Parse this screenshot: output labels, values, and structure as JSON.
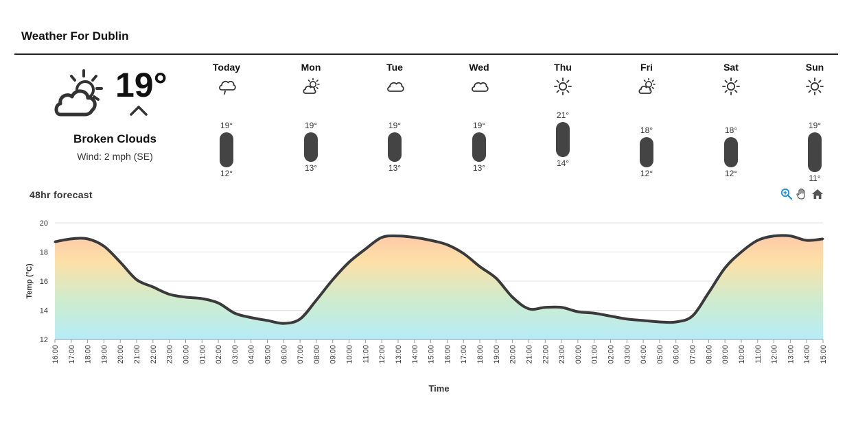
{
  "header": {
    "title": "Weather For Dublin"
  },
  "current": {
    "icon": "broken-clouds-day-icon",
    "temp": "19°",
    "trend_icon": "chevron-up-icon",
    "condition": "Broken Clouds",
    "wind": "Wind: 2 mph (SE)"
  },
  "days": [
    {
      "label": "Today",
      "icon": "cloud-rain-icon",
      "hi": "19°",
      "lo": "12°",
      "hi_v": 19,
      "lo_v": 12
    },
    {
      "label": "Mon",
      "icon": "partly-cloudy-icon",
      "hi": "19°",
      "lo": "13°",
      "hi_v": 19,
      "lo_v": 13
    },
    {
      "label": "Tue",
      "icon": "cloud-icon",
      "hi": "19°",
      "lo": "13°",
      "hi_v": 19,
      "lo_v": 13
    },
    {
      "label": "Wed",
      "icon": "cloud-icon",
      "hi": "19°",
      "lo": "13°",
      "hi_v": 19,
      "lo_v": 13
    },
    {
      "label": "Thu",
      "icon": "sun-icon",
      "hi": "21°",
      "lo": "14°",
      "hi_v": 21,
      "lo_v": 14
    },
    {
      "label": "Fri",
      "icon": "partly-cloudy-icon",
      "hi": "18°",
      "lo": "12°",
      "hi_v": 18,
      "lo_v": 12
    },
    {
      "label": "Sat",
      "icon": "sun-icon",
      "hi": "18°",
      "lo": "12°",
      "hi_v": 18,
      "lo_v": 12
    },
    {
      "label": "Sun",
      "icon": "sun-icon",
      "hi": "19°",
      "lo": "11°",
      "hi_v": 19,
      "lo_v": 11
    }
  ],
  "forecast": {
    "title": "48hr forecast",
    "toolbar": [
      {
        "name": "zoom-in-icon",
        "color": "#1a8fdc"
      },
      {
        "name": "pan-hand-icon",
        "color": "#555555"
      },
      {
        "name": "home-icon",
        "color": "#555555"
      }
    ]
  },
  "chart_data": {
    "type": "area",
    "xlabel": "Time",
    "ylabel": "Temp (°C)",
    "ylim": [
      12,
      20
    ],
    "yticks": [
      12,
      14,
      16,
      18,
      20
    ],
    "grid": true,
    "gradient": [
      "#fdbfa9",
      "#fde0a7",
      "#cdeccf",
      "#b6ecf8"
    ],
    "line_color": "#3a3a3a",
    "x": [
      "16:00",
      "17:00",
      "18:00",
      "19:00",
      "20:00",
      "21:00",
      "22:00",
      "23:00",
      "00:00",
      "01:00",
      "02:00",
      "03:00",
      "04:00",
      "05:00",
      "06:00",
      "07:00",
      "08:00",
      "09:00",
      "10:00",
      "11:00",
      "12:00",
      "13:00",
      "14:00",
      "15:00",
      "16:00",
      "17:00",
      "18:00",
      "19:00",
      "20:00",
      "21:00",
      "22:00",
      "23:00",
      "00:00",
      "01:00",
      "02:00",
      "03:00",
      "04:00",
      "05:00",
      "06:00",
      "07:00",
      "08:00",
      "09:00",
      "10:00",
      "11:00",
      "12:00",
      "13:00",
      "14:00",
      "15:00"
    ],
    "values": [
      18.7,
      18.9,
      18.9,
      18.4,
      17.3,
      16.1,
      15.6,
      15.1,
      14.9,
      14.8,
      14.5,
      13.8,
      13.5,
      13.3,
      13.1,
      13.4,
      14.7,
      16.1,
      17.3,
      18.2,
      19.0,
      19.1,
      19.0,
      18.8,
      18.5,
      17.9,
      17.0,
      16.2,
      14.9,
      14.1,
      14.2,
      14.2,
      13.9,
      13.8,
      13.6,
      13.4,
      13.3,
      13.2,
      13.2,
      13.6,
      15.2,
      16.9,
      18.0,
      18.8,
      19.1,
      19.1,
      18.8,
      18.9
    ]
  }
}
